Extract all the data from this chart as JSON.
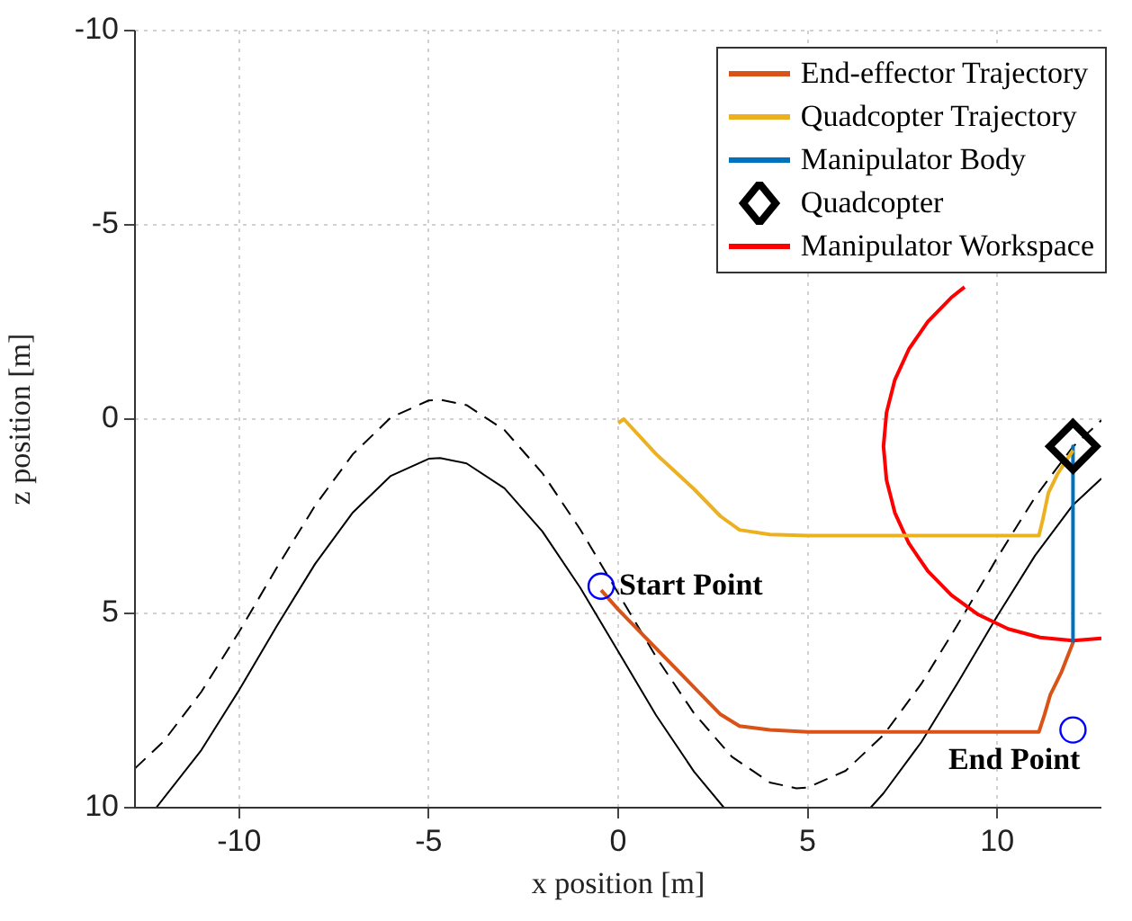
{
  "chart_data": {
    "type": "line",
    "xlabel": "x position [m]",
    "ylabel": "z position [m]",
    "xlim": [
      -12.75,
      12.75
    ],
    "xticks": [
      -10,
      -5,
      0,
      5,
      10
    ],
    "ylim": [
      10,
      -10
    ],
    "yticks": [
      -10,
      -5,
      0,
      5,
      10
    ],
    "grid": true,
    "legend": "top right",
    "annotations": [
      {
        "text": "Start Point",
        "x": -0.45,
        "y": 4.3
      },
      {
        "text": "End Point",
        "x": 12,
        "y": 8
      }
    ],
    "series": [
      {
        "name": "End-effector Trajectory",
        "color": "#d95319",
        "marker": "none",
        "x": [
          -0.45,
          0,
          1,
          2,
          2.7,
          3.2,
          4,
          5,
          11.1,
          11.25,
          11.4,
          11.7,
          12
        ],
        "values": [
          4.4,
          4.9,
          5.9,
          6.9,
          7.6,
          7.9,
          8.0,
          8.05,
          8.05,
          7.6,
          7.1,
          6.5,
          5.75
        ]
      },
      {
        "name": "Quadcopter Trajectory",
        "color": "#edb120",
        "marker": "none",
        "x": [
          0,
          0.15,
          1,
          2,
          2.7,
          3.2,
          4,
          5,
          11.1,
          11.2,
          11.35,
          11.6,
          11.9,
          12
        ],
        "values": [
          0.1,
          0,
          0.9,
          1.8,
          2.5,
          2.85,
          2.97,
          3,
          3,
          2.6,
          1.9,
          1.4,
          0.95,
          0.8
        ]
      },
      {
        "name": "Manipulator Body",
        "color": "#0072bd",
        "marker": "none",
        "x": [
          12,
          12
        ],
        "values": [
          0.7,
          5.75
        ]
      },
      {
        "name": "Quadcopter",
        "type": "scatter",
        "color": "#000000",
        "marker": "diamond",
        "x": [
          12
        ],
        "values": [
          0.7
        ]
      },
      {
        "name": "Manipulator Workspace",
        "color": "#ff0000",
        "marker": "none",
        "x": [
          12.75,
          12,
          11.13,
          10.29,
          9.5,
          8.79,
          8.17,
          7.67,
          7.3,
          7.08,
          7,
          7.08,
          7.3,
          7.67,
          8.17,
          8.79,
          9.14
        ],
        "values": [
          5.64,
          5.7,
          5.62,
          5.4,
          5.03,
          4.53,
          3.91,
          3.2,
          2.41,
          1.57,
          0.7,
          -0.17,
          -1.01,
          -1.8,
          -2.51,
          -3.13,
          -3.4
        ]
      },
      {
        "color": "#000000",
        "marker": "none",
        "x": [
          -12.19,
          -11,
          -10,
          -9,
          -8,
          -7,
          -6,
          -5,
          -4.7,
          -4,
          -3,
          -2,
          -1,
          0,
          1,
          2,
          2.79,
          6.66,
          7,
          8,
          9,
          10,
          11,
          12,
          12.75
        ],
        "values": [
          10,
          8.52,
          6.97,
          5.31,
          3.73,
          2.4,
          1.46,
          1.02,
          1,
          1.14,
          1.78,
          2.89,
          4.34,
          5.98,
          7.62,
          9.07,
          10,
          10,
          9.63,
          8.31,
          6.72,
          5.07,
          3.51,
          2.21,
          1.53
        ]
      },
      {
        "color": "#000000",
        "marker": "none",
        "line_style": "dashed",
        "x": [
          -12.75,
          -12,
          -11,
          -10,
          -9,
          -8,
          -7,
          -6,
          -5,
          -4.7,
          -4,
          -3,
          -2,
          -1,
          0,
          1,
          2,
          3,
          4,
          4.7,
          5,
          6,
          7,
          8,
          9,
          10,
          11,
          12,
          12.75
        ],
        "values": [
          8.99,
          8.3,
          7.02,
          5.47,
          3.81,
          2.23,
          0.9,
          -0.04,
          -0.48,
          -0.5,
          -0.36,
          0.28,
          1.39,
          2.84,
          4.48,
          6.12,
          7.57,
          8.69,
          9.35,
          9.5,
          9.48,
          9.05,
          8.13,
          6.81,
          5.22,
          3.57,
          2.01,
          0.71,
          0.03
        ]
      },
      {
        "type": "scatter",
        "color": "#0000ff",
        "marker": "circle",
        "x": [
          -0.45,
          12
        ],
        "values": [
          4.3,
          8
        ]
      }
    ]
  }
}
